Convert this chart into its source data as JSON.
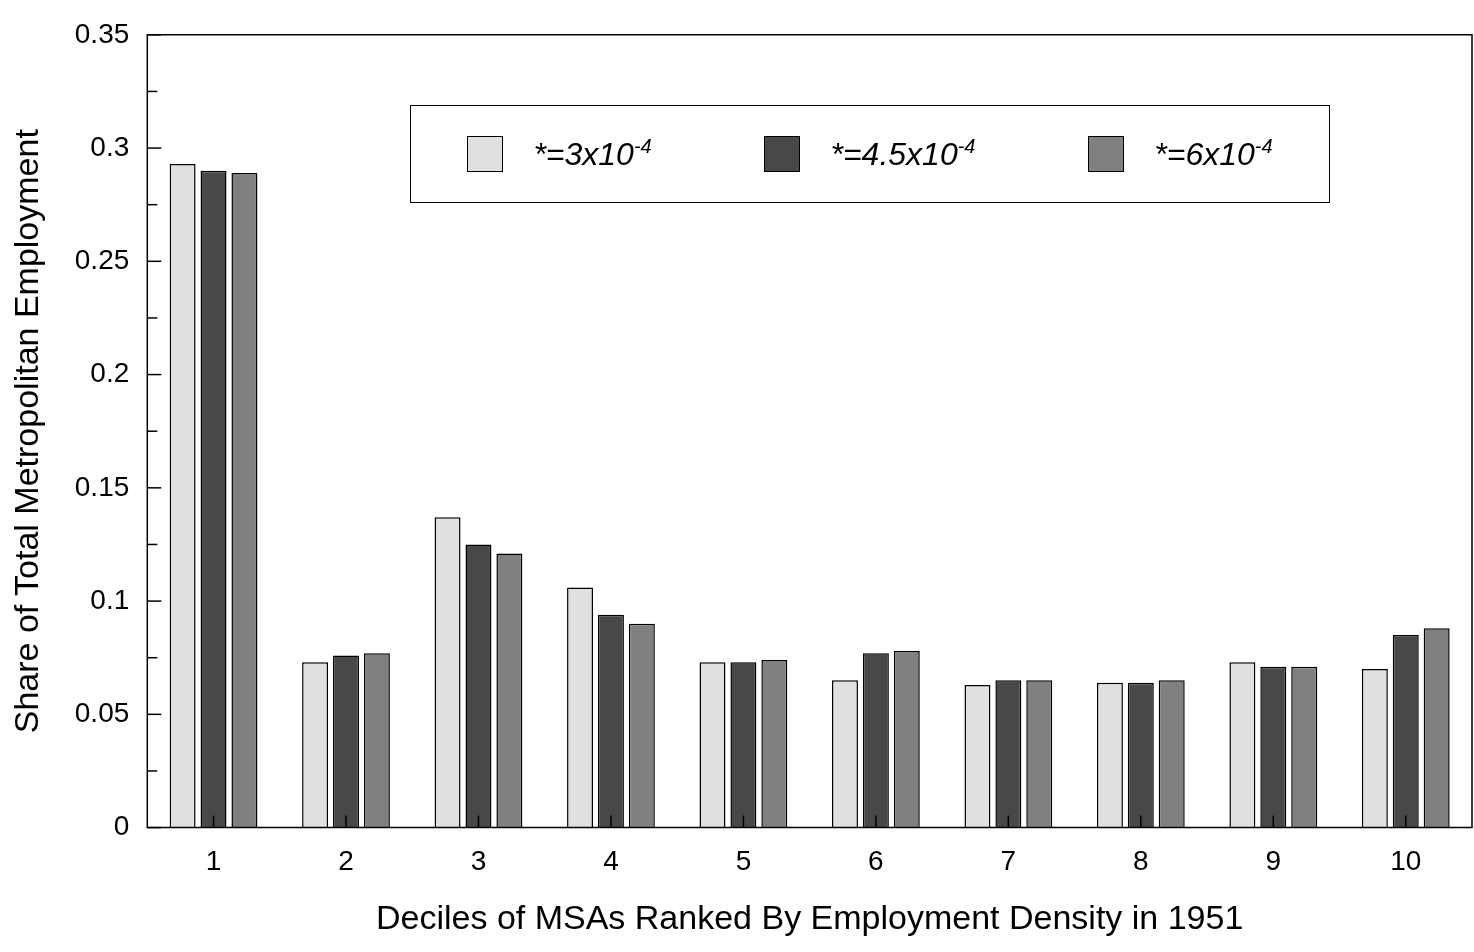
{
  "chart_data": {
    "type": "bar",
    "xlabel": "Deciles of MSAs Ranked By Employment Density in 1951",
    "ylabel": "Share of Total Metropolitan Employment",
    "categories": [
      "1",
      "2",
      "3",
      "4",
      "5",
      "6",
      "7",
      "8",
      "9",
      "10"
    ],
    "series": [
      {
        "name": "*=3x10$^{-4}$",
        "color": "#e0e0e0",
        "values": [
          0.293,
          0.073,
          0.137,
          0.106,
          0.073,
          0.065,
          0.063,
          0.064,
          0.073,
          0.07
        ]
      },
      {
        "name": "*=4.5x10$^{-4}$",
        "color": "#484848",
        "values": [
          0.29,
          0.076,
          0.125,
          0.094,
          0.073,
          0.077,
          0.065,
          0.064,
          0.071,
          0.085
        ]
      },
      {
        "name": "*=6x10$^{-4}$",
        "color": "#808080",
        "values": [
          0.289,
          0.077,
          0.121,
          0.09,
          0.074,
          0.078,
          0.065,
          0.065,
          0.071,
          0.088
        ]
      }
    ],
    "ylim": [
      0,
      0.35
    ],
    "yticks": [
      0,
      {
        "value": 0.025,
        "label": null
      },
      0.05,
      {
        "value": 0.075,
        "label": null
      },
      0.1,
      {
        "value": 0.125,
        "label": null
      },
      0.15,
      {
        "value": 0.175,
        "label": null
      },
      0.2,
      {
        "value": 0.225,
        "label": null
      },
      0.25,
      {
        "value": 0.275,
        "label": null
      },
      0.3,
      {
        "value": 0.325,
        "label": null
      },
      0.35
    ],
    "grid": false,
    "legend": "top"
  }
}
